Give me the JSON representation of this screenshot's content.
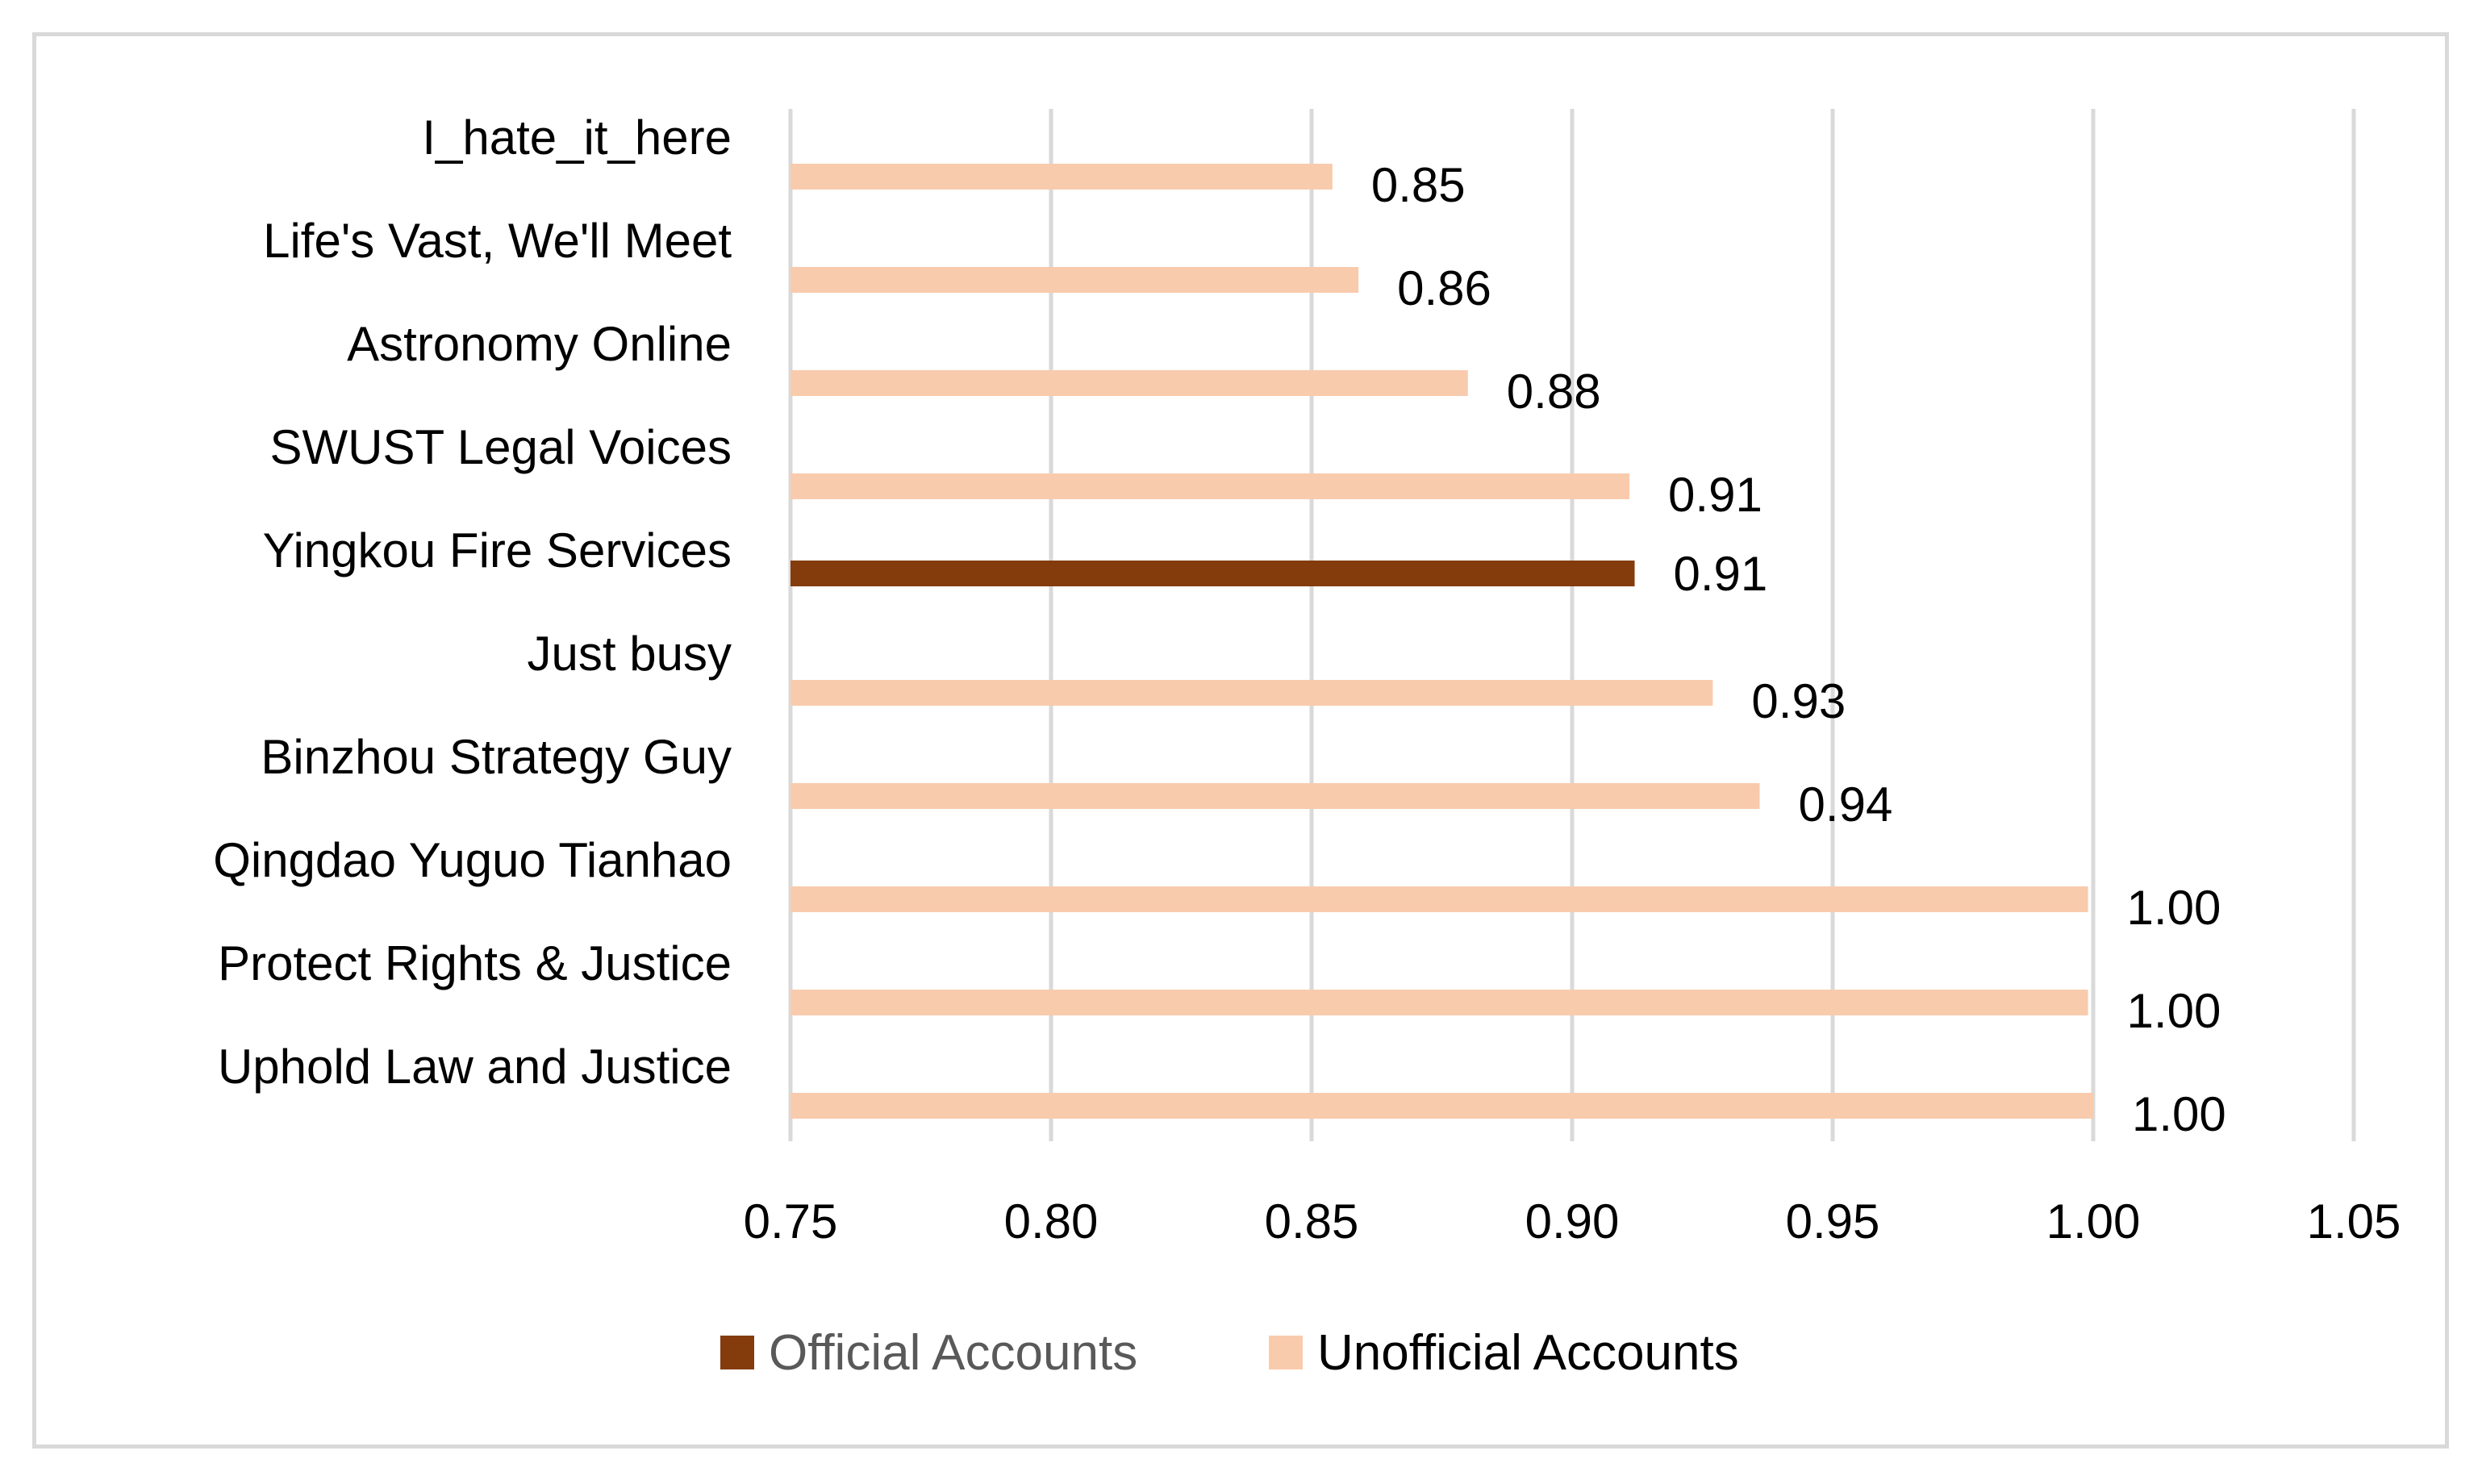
{
  "chart_data": {
    "type": "bar",
    "orientation": "horizontal",
    "categories": [
      "I_hate_it_here",
      "Life's Vast, We'll Meet",
      "Astronomy Online",
      "SWUST Legal Voices",
      "Yingkou Fire Services",
      "Just busy",
      "Binzhou Strategy Guy",
      "Qingdao Yuguo Tianhao",
      "Protect Rights & Justice",
      "Uphold Law and Justice"
    ],
    "series": [
      {
        "name": "Official Accounts",
        "color": "#843c0c",
        "values": [
          null,
          null,
          null,
          null,
          0.912,
          null,
          null,
          null,
          null,
          null
        ],
        "labels": [
          "",
          "",
          "",
          "",
          "0.91",
          "",
          "",
          "",
          "",
          ""
        ]
      },
      {
        "name": "Unofficial Accounts",
        "color": "#f8cbad",
        "values": [
          0.854,
          0.859,
          0.88,
          0.911,
          null,
          0.927,
          0.936,
          0.999,
          0.999,
          1.0
        ],
        "labels": [
          "0.85",
          "0.86",
          "0.88",
          "0.91",
          "",
          "0.93",
          "0.94",
          "1.00",
          "1.00",
          "1.00"
        ]
      }
    ],
    "xlim": [
      0.75,
      1.05
    ],
    "xticks": [
      "0.75",
      "0.80",
      "0.85",
      "0.90",
      "0.95",
      "1.00",
      "1.05"
    ],
    "grid": "vertical",
    "legend_position": "bottom",
    "title": "",
    "xlabel": "",
    "ylabel": ""
  }
}
